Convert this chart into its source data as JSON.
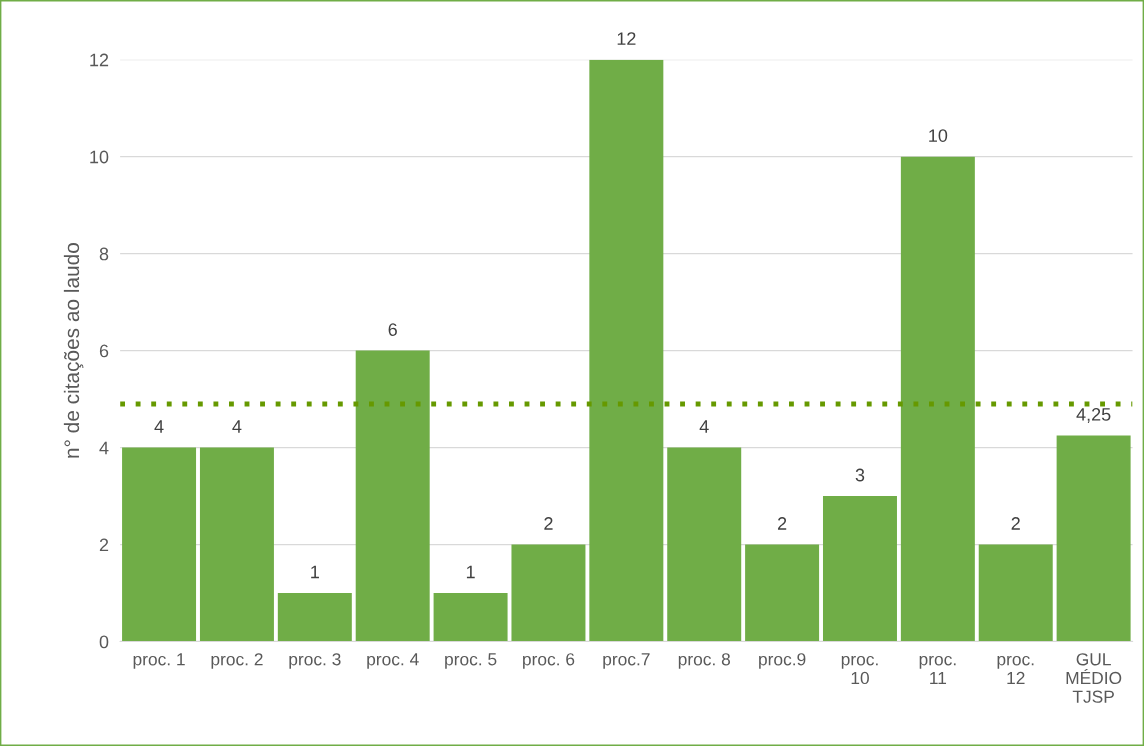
{
  "chart_data": {
    "type": "bar",
    "ylabel": "n° de citações ao laudo",
    "categories": [
      "proc. 1",
      "proc. 2",
      "proc. 3",
      "proc. 4",
      "proc. 5",
      "proc. 6",
      "proc.7",
      "proc. 8",
      "proc.9",
      "proc. 10",
      "proc. 11",
      "proc. 12",
      "GUL MÉDIO TJSP"
    ],
    "values": [
      4,
      4,
      1,
      6,
      1,
      2,
      12,
      4,
      2,
      3,
      10,
      2,
      4.25
    ],
    "value_labels": [
      "4",
      "4",
      "1",
      "6",
      "1",
      "2",
      "12",
      "4",
      "2",
      "3",
      "10",
      "2",
      "4,25"
    ],
    "color": "#70ad47",
    "ylim": [
      0,
      12
    ],
    "yticks": [
      0,
      2,
      4,
      6,
      8,
      10,
      12
    ],
    "grid": "y",
    "ref_lines": [
      {
        "axis": "y",
        "value": 4.9,
        "color": "#669900",
        "line_style": "dotted"
      }
    ]
  }
}
